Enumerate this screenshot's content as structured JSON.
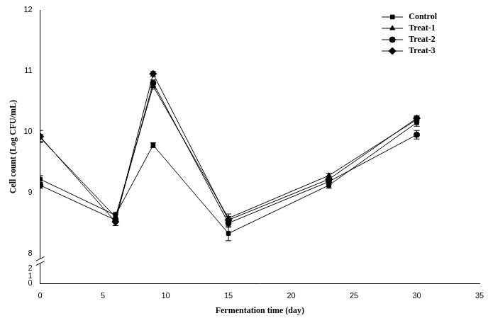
{
  "chart_data": {
    "type": "line",
    "x_label": "Fermentation time (day)",
    "y_label": "Cell count (Log CFU/mL)",
    "x": [
      0,
      6,
      9,
      15,
      23,
      30
    ],
    "xlim": [
      0,
      35
    ],
    "xticks": [
      0,
      5,
      10,
      15,
      20,
      25,
      30,
      35
    ],
    "ylim": [
      0,
      12
    ],
    "yticks": [
      0,
      1,
      2,
      8,
      9,
      10,
      11,
      12
    ],
    "grid": false,
    "legend": "upper right",
    "series": [
      {
        "name": "Control",
        "color": "#000000",
        "marker": "square",
        "values": [
          9.22,
          8.63,
          9.78,
          8.33,
          9.12,
          10.15
        ],
        "errors": [
          0.06,
          0.05,
          0.04,
          0.12,
          0.05,
          0.06
        ]
      },
      {
        "name": "Treat-1",
        "color": "#000000",
        "marker": "triangle",
        "values": [
          9.9,
          8.6,
          10.75,
          8.58,
          9.28,
          10.2
        ],
        "errors": [
          0.06,
          0.05,
          0.05,
          0.07,
          0.04,
          0.05
        ]
      },
      {
        "name": "Treat-2",
        "color": "#000000",
        "marker": "circle",
        "values": [
          9.12,
          8.55,
          10.8,
          8.5,
          9.18,
          9.95
        ],
        "errors": [
          0.05,
          0.09,
          0.05,
          0.07,
          0.05,
          0.07
        ]
      },
      {
        "name": "Treat-3",
        "color": "#000000",
        "marker": "diamond",
        "values": [
          9.92,
          8.52,
          10.95,
          8.55,
          9.22,
          10.22
        ],
        "errors": [
          0.1,
          0.06,
          0.04,
          0.06,
          0.05,
          0.04
        ]
      }
    ]
  }
}
